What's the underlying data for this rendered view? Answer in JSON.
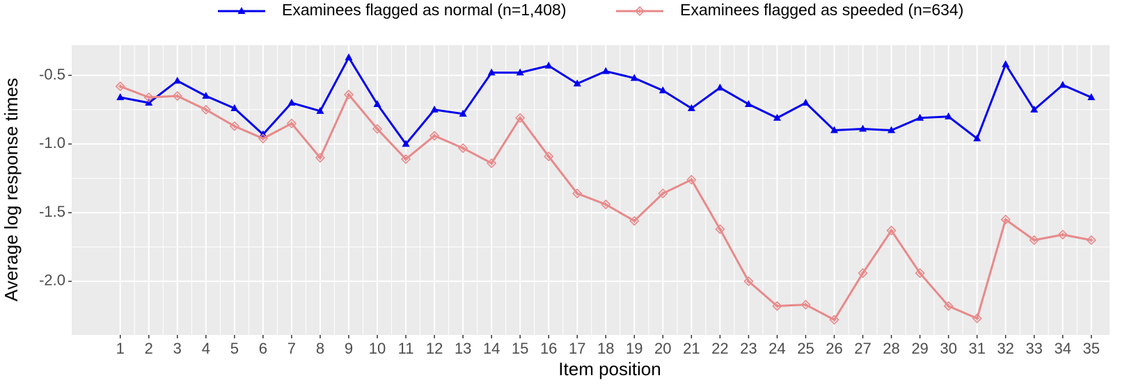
{
  "chart_data": {
    "type": "line",
    "x_label": "Item position",
    "y_label": "Average log response times",
    "x": [
      1,
      2,
      3,
      4,
      5,
      6,
      7,
      8,
      9,
      10,
      11,
      12,
      13,
      14,
      15,
      16,
      17,
      18,
      19,
      20,
      21,
      22,
      23,
      24,
      25,
      26,
      27,
      28,
      29,
      30,
      31,
      32,
      33,
      34,
      35
    ],
    "series": [
      {
        "name": "Examinees flagged as normal (n=1,408)",
        "color": "#0000ee",
        "marker": "triangle",
        "values": [
          -0.66,
          -0.7,
          -0.54,
          -0.65,
          -0.74,
          -0.93,
          -0.7,
          -0.76,
          -0.37,
          -0.71,
          -1.0,
          -0.75,
          -0.78,
          -0.48,
          -0.48,
          -0.43,
          -0.56,
          -0.47,
          -0.52,
          -0.61,
          -0.74,
          -0.59,
          -0.71,
          -0.81,
          -0.7,
          -0.9,
          -0.89,
          -0.9,
          -0.81,
          -0.8,
          -0.96,
          -0.42,
          -0.75,
          -0.57,
          -0.66
        ]
      },
      {
        "name": "Examinees flagged as speeded (n=634)",
        "color": "#e8898a",
        "marker": "diamond",
        "values": [
          -0.58,
          -0.66,
          -0.65,
          -0.75,
          -0.87,
          -0.96,
          -0.85,
          -1.1,
          -0.64,
          -0.89,
          -1.11,
          -0.94,
          -1.03,
          -1.14,
          -0.81,
          -1.09,
          -1.36,
          -1.44,
          -1.56,
          -1.36,
          -1.26,
          -1.62,
          -2.0,
          -2.18,
          -2.17,
          -2.28,
          -1.94,
          -1.63,
          -1.94,
          -2.18,
          -2.27,
          -1.55,
          -1.7,
          -1.66,
          -1.7
        ]
      }
    ],
    "xlim": [
      -0.7,
      35.64
    ],
    "ylim": [
      -2.39,
      -0.28
    ],
    "xticks": [
      1,
      2,
      3,
      4,
      5,
      6,
      7,
      8,
      9,
      10,
      11,
      12,
      13,
      14,
      15,
      16,
      17,
      18,
      19,
      20,
      21,
      22,
      23,
      24,
      25,
      26,
      27,
      28,
      29,
      30,
      31,
      32,
      33,
      34,
      35
    ],
    "yticks": [
      {
        "value": -2.0,
        "label": "-2.0"
      },
      -1.5,
      {
        "value": -1.0,
        "label": "-1.0"
      },
      -0.5
    ],
    "grid": true,
    "legend_position": "top"
  }
}
